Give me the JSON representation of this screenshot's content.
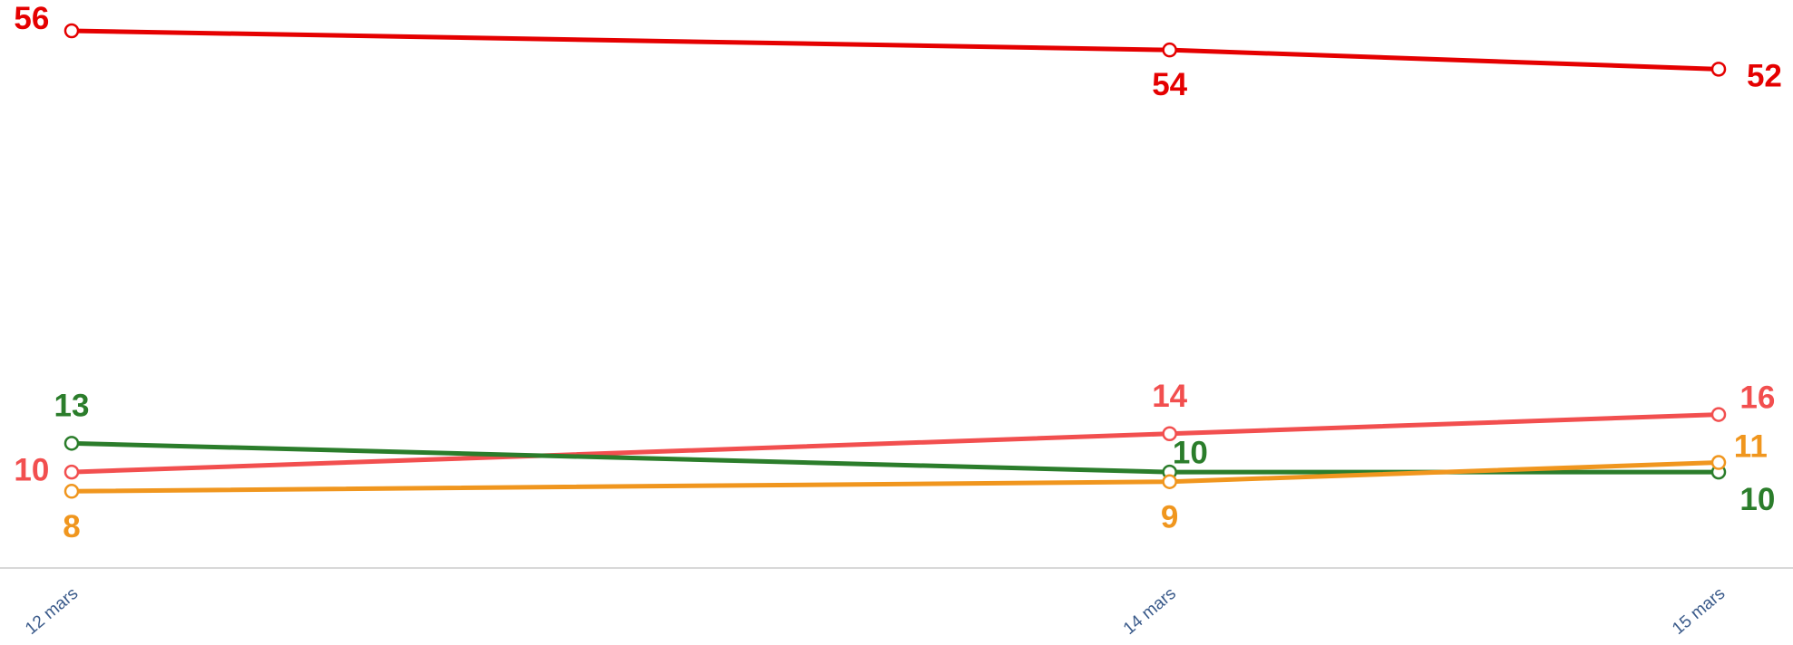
{
  "chart_data": {
    "type": "line",
    "x": [
      "12 mars",
      "14 mars",
      "15 mars"
    ],
    "ylim": [
      0,
      56
    ],
    "series": [
      {
        "color": "#e50000",
        "values": [
          56,
          54,
          52
        ]
      },
      {
        "color": "#f24f4f",
        "values": [
          10,
          14,
          16
        ]
      },
      {
        "color": "#2b7d2b",
        "values": [
          13,
          10,
          10
        ]
      },
      {
        "color": "#f0961e",
        "values": [
          8,
          9,
          11
        ]
      }
    ]
  }
}
